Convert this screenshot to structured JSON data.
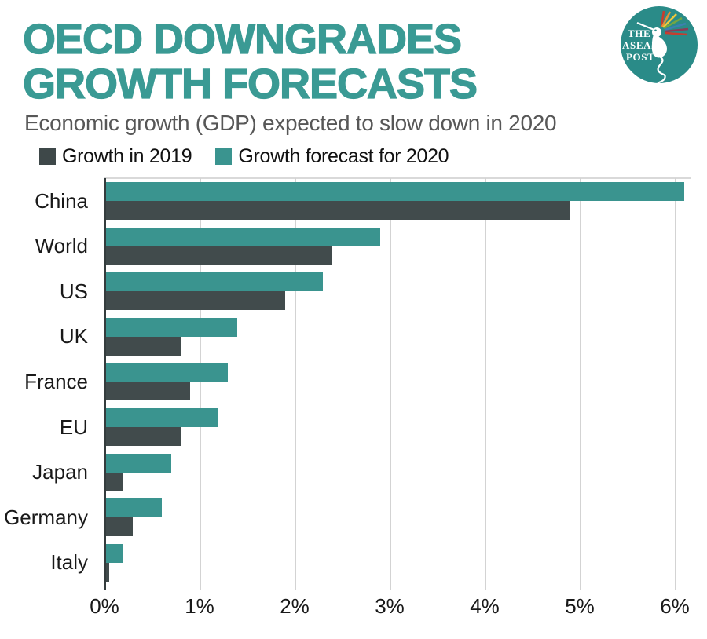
{
  "header": {
    "title_lines": [
      "OECD DOWNGRADES",
      "GROWTH FORECASTS"
    ],
    "title_color": "#3A9A94",
    "subtitle": "Economic growth (GDP) expected to slow down in 2020"
  },
  "logo": {
    "lines": [
      "THE",
      "ASEAN",
      "POST"
    ],
    "circle_color": "#2A8B88"
  },
  "legend": [
    {
      "label": "Growth in 2019",
      "color": "#3E4849"
    },
    {
      "label": "Growth forecast for 2020",
      "color": "#3A948F"
    }
  ],
  "chart_data": {
    "type": "bar",
    "orientation": "horizontal",
    "title": "OECD DOWNGRADES GROWTH FORECASTS",
    "subtitle": "Economic growth (GDP) expected to slow down in 2020",
    "categories": [
      "China",
      "World",
      "US",
      "UK",
      "France",
      "EU",
      "Japan",
      "Germany",
      "Italy"
    ],
    "series": [
      {
        "name": "Growth forecast for 2020",
        "color": "#3A948F",
        "values": [
          6.1,
          2.9,
          2.3,
          1.4,
          1.3,
          1.2,
          0.7,
          0.6,
          0.2
        ]
      },
      {
        "name": "Growth in 2019",
        "color": "#414B4C",
        "values": [
          4.9,
          2.4,
          1.9,
          0.8,
          0.9,
          0.8,
          0.2,
          0.3,
          0.05
        ]
      }
    ],
    "bar_order_note": "top bar of each pair is the teal series, bottom bar is the dark series",
    "x_axis": {
      "ticks": [
        "0%",
        "1%",
        "2%",
        "3%",
        "4%",
        "5%",
        "6%"
      ],
      "min": 0,
      "max": 6.2,
      "unit": "%"
    },
    "grid": "vertical-gridlines-every-1pct",
    "legend_position": "top-left"
  }
}
